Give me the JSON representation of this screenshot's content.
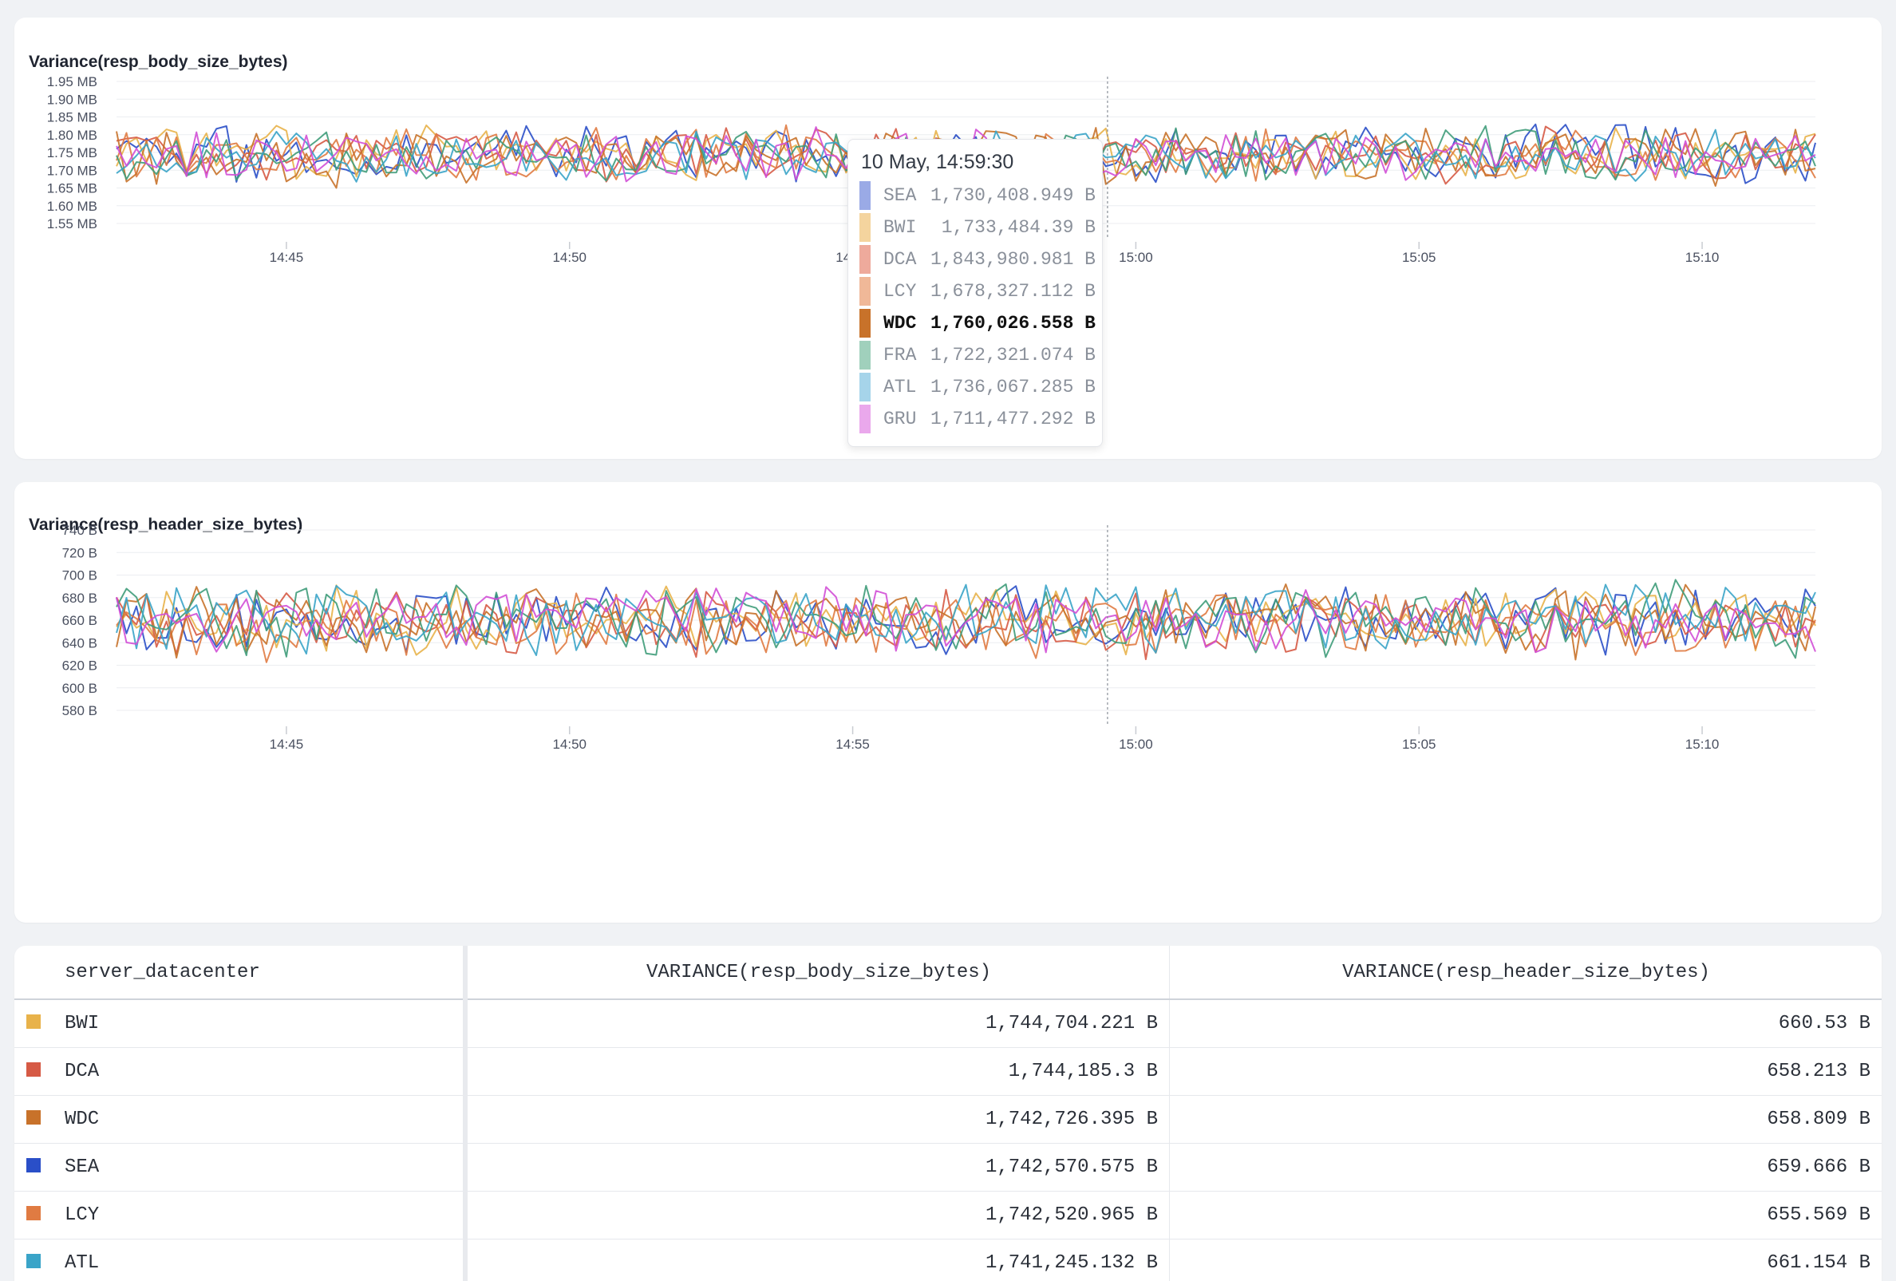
{
  "chart_data": [
    {
      "type": "line",
      "title": "Variance(resp_body_size_bytes)",
      "y_ticks": [
        "1.55 MB",
        "1.60 MB",
        "1.65 MB",
        "1.70 MB",
        "1.75 MB",
        "1.80 MB",
        "1.85 MB",
        "1.90 MB",
        "1.95 MB"
      ],
      "x_ticks": [
        "14:45",
        "14:50",
        "14:55",
        "15:00",
        "15:05",
        "15:10"
      ],
      "ylim": [
        1530000,
        1960000
      ],
      "x_range": [
        "14:42:00",
        "15:12:00"
      ],
      "hover_time": "14:59:30",
      "series": [
        {
          "name": "SEA",
          "color": "#2a4fc8",
          "mean": 1742570.575,
          "spread": 95000,
          "seed": 3
        },
        {
          "name": "BWI",
          "color": "#e8b24a",
          "mean": 1744704.221,
          "spread": 85000,
          "seed": 11
        },
        {
          "name": "DCA",
          "color": "#d65a45",
          "mean": 1744185.3,
          "spread": 85000,
          "seed": 19
        },
        {
          "name": "LCY",
          "color": "#e07b42",
          "mean": 1742520.965,
          "spread": 85000,
          "seed": 27
        },
        {
          "name": "WDC",
          "color": "#c8722a",
          "mean": 1742726.395,
          "spread": 95000,
          "seed": 35
        },
        {
          "name": "FRA",
          "color": "#3f9c7a",
          "mean": 1740000,
          "spread": 90000,
          "seed": 43
        },
        {
          "name": "ATL",
          "color": "#3aa4c8",
          "mean": 1741245.132,
          "spread": 80000,
          "seed": 51
        },
        {
          "name": "GRU",
          "color": "#d24fd6",
          "mean": 1738000,
          "spread": 85000,
          "seed": 59
        }
      ]
    },
    {
      "type": "line",
      "title": "Variance(resp_header_size_bytes)",
      "y_ticks": [
        "580 B",
        "600 B",
        "620 B",
        "640 B",
        "660 B",
        "680 B",
        "700 B",
        "720 B",
        "740 B"
      ],
      "x_ticks": [
        "14:45",
        "14:50",
        "14:55",
        "15:00",
        "15:05",
        "15:10"
      ],
      "ylim": [
        580,
        740
      ],
      "x_range": [
        "14:42:00",
        "15:12:00"
      ],
      "hover_time": "14:59:30",
      "series": [
        {
          "name": "SEA",
          "color": "#2a4fc8",
          "mean": 659.666,
          "spread": 34,
          "seed": 7
        },
        {
          "name": "BWI",
          "color": "#e8b24a",
          "mean": 660.53,
          "spread": 34,
          "seed": 13
        },
        {
          "name": "DCA",
          "color": "#d65a45",
          "mean": 658.213,
          "spread": 34,
          "seed": 21
        },
        {
          "name": "LCY",
          "color": "#e07b42",
          "mean": 655.569,
          "spread": 34,
          "seed": 29
        },
        {
          "name": "WDC",
          "color": "#c8722a",
          "mean": 658.809,
          "spread": 36,
          "seed": 37
        },
        {
          "name": "FRA",
          "color": "#3f9c7a",
          "mean": 660,
          "spread": 38,
          "seed": 45
        },
        {
          "name": "ATL",
          "color": "#3aa4c8",
          "mean": 661.154,
          "spread": 34,
          "seed": 53
        },
        {
          "name": "GRU",
          "color": "#d24fd6",
          "mean": 660,
          "spread": 34,
          "seed": 61
        }
      ]
    }
  ],
  "tooltip": {
    "date": "10 May, 14:59:30",
    "rows": [
      {
        "code": "SEA",
        "value": "1,730,408.949 B",
        "color": "#9aaae6",
        "active": false
      },
      {
        "code": "BWI",
        "value": "1,733,484.39 B",
        "color": "#f4d49e",
        "active": false
      },
      {
        "code": "DCA",
        "value": "1,843,980.981 B",
        "color": "#eeaa9c",
        "active": false
      },
      {
        "code": "LCY",
        "value": "1,678,327.112 B",
        "color": "#f0b898",
        "active": false
      },
      {
        "code": "WDC",
        "value": "1,760,026.558 B",
        "color": "#c8722a",
        "active": true
      },
      {
        "code": "FRA",
        "value": "1,722,321.074 B",
        "color": "#a0d0bc",
        "active": false
      },
      {
        "code": "ATL",
        "value": "1,736,067.285 B",
        "color": "#a6d4ea",
        "active": false
      },
      {
        "code": "GRU",
        "value": "1,711,477.292 B",
        "color": "#eaa8ec",
        "active": false
      }
    ]
  },
  "table": {
    "headers": [
      "server_datacenter",
      "VARIANCE(resp_body_size_bytes)",
      "VARIANCE(resp_header_size_bytes)"
    ],
    "rows": [
      {
        "dc": "BWI",
        "body": "1,744,704.221 B",
        "header": "660.53 B",
        "color": "#e8b24a"
      },
      {
        "dc": "DCA",
        "body": "1,744,185.3 B",
        "header": "658.213 B",
        "color": "#d65a45"
      },
      {
        "dc": "WDC",
        "body": "1,742,726.395 B",
        "header": "658.809 B",
        "color": "#c8722a"
      },
      {
        "dc": "SEA",
        "body": "1,742,570.575 B",
        "header": "659.666 B",
        "color": "#2a4fc8"
      },
      {
        "dc": "LCY",
        "body": "1,742,520.965 B",
        "header": "655.569 B",
        "color": "#e07b42"
      },
      {
        "dc": "ATL",
        "body": "1,741,245.132 B",
        "header": "661.154 B",
        "color": "#3aa4c8"
      }
    ]
  }
}
